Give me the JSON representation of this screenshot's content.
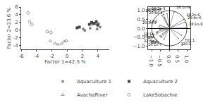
{
  "chart_data": [
    {
      "type": "scatter",
      "xlabel": "Factor 1=42.5 %",
      "ylabel": "Factor 2=23.6 %",
      "series": [
        {
          "name": "Aquaculture 1",
          "color": "#888888",
          "marker": "circle",
          "x": [
            2.1,
            2.3,
            3.0,
            3.3,
            3.7,
            3.9,
            4.1,
            4.3
          ],
          "values": [
            0.3,
            -0.1,
            0.5,
            1.5,
            1.6,
            0.3,
            1.7,
            0.8
          ]
        },
        {
          "name": "Aquaculture 2",
          "color": "#444444",
          "marker": "square",
          "x": [
            1.3,
            1.6,
            2.9,
            3.2,
            3.5,
            3.8,
            4.0
          ],
          "values": [
            0.6,
            0.8,
            1.5,
            2.0,
            1.8,
            2.2,
            1.3
          ]
        },
        {
          "name": "AvachaRiver",
          "color": "#888888",
          "marker": "triangle-up-open",
          "x": [
            -2.2,
            -1.6,
            -1.2,
            -0.7,
            -0.4,
            -0.1
          ],
          "values": [
            -2.8,
            -3.4,
            -3.7,
            -3.5,
            -2.9,
            -2.7
          ]
        },
        {
          "name": "LakeSobachie",
          "color": "#888888",
          "marker": "circle-open",
          "x": [
            -5.1,
            -4.9,
            -4.6,
            -2.6,
            -2.1
          ],
          "values": [
            4.5,
            2.2,
            1.5,
            -0.4,
            -0.6
          ]
        }
      ],
      "xlim": [
        -6,
        5.5
      ],
      "ylim": [
        -5,
        6
      ],
      "xticks": [
        -6,
        -4,
        -2,
        0,
        2,
        4
      ],
      "yticks": [
        -4,
        -2,
        0,
        2,
        4,
        6
      ],
      "grid": false,
      "legend": "bottom"
    },
    {
      "type": "biplot",
      "color": "#555555",
      "annotations": [
        {
          "text": "16:1n-9",
          "x": 0.28,
          "y": 0.96
        },
        {
          "text": "18:2n-3",
          "x": -0.13,
          "y": 0.87
        },
        {
          "text": "20:5n-3",
          "x": -0.35,
          "y": 0.83
        },
        {
          "text": "20:2n-3",
          "x": -0.44,
          "y": 0.77
        },
        {
          "text": "20:4n-3",
          "x": -0.3,
          "y": 0.63
        },
        {
          "text": "18:1",
          "x": -0.58,
          "y": 0.18
        },
        {
          "text": "20:3n-3",
          "x": -0.63,
          "y": 0.08
        },
        {
          "text": "18:1n-7",
          "x": -0.58,
          "y": -0.07
        },
        {
          "text": "15-17",
          "x": -0.74,
          "y": -0.2
        },
        {
          "text": "BFA",
          "x": -0.7,
          "y": -0.29
        },
        {
          "text": "22:6n-3",
          "x": -0.57,
          "y": -0.46
        },
        {
          "text": "16:1",
          "x": -0.53,
          "y": -0.52
        },
        {
          "text": "14:1",
          "x": -0.46,
          "y": -0.57
        },
        {
          "text": "16:1n-7",
          "x": -0.33,
          "y": -0.69
        },
        {
          "text": "18:2n-6",
          "x": 0.84,
          "y": 0.52
        },
        {
          "text": "20:4n-6",
          "x": 0.93,
          "y": 0.36
        },
        {
          "text": "18:1n-9",
          "x": 0.99,
          "y": 0.02
        },
        {
          "text": "T22:1",
          "x": 0.73,
          "y": -0.42
        },
        {
          "text": "∦20:1",
          "x": 0.55,
          "y": -0.63
        }
      ],
      "xlim": [
        -1.2,
        1.2
      ],
      "ylim": [
        -1.2,
        1.2
      ],
      "xticks": [
        {
          "value": -1.0,
          "label": "−1.0"
        },
        {
          "value": -0.5,
          "label": "−0.5"
        },
        {
          "value": 0.0,
          "label": "0.0"
        },
        {
          "value": 0.5,
          "label": "0.5"
        },
        {
          "value": 1.0,
          "label": "1.0"
        }
      ],
      "yticks": [
        {
          "value": -1.0,
          "label": "−1.0"
        },
        {
          "value": -0.5,
          "label": "−0.5"
        },
        {
          "value": 0.0,
          "label": "0.0"
        },
        {
          "value": 0.5,
          "label": "0.5"
        },
        {
          "value": 1.0,
          "label": "1.0"
        }
      ],
      "grid": false
    }
  ]
}
